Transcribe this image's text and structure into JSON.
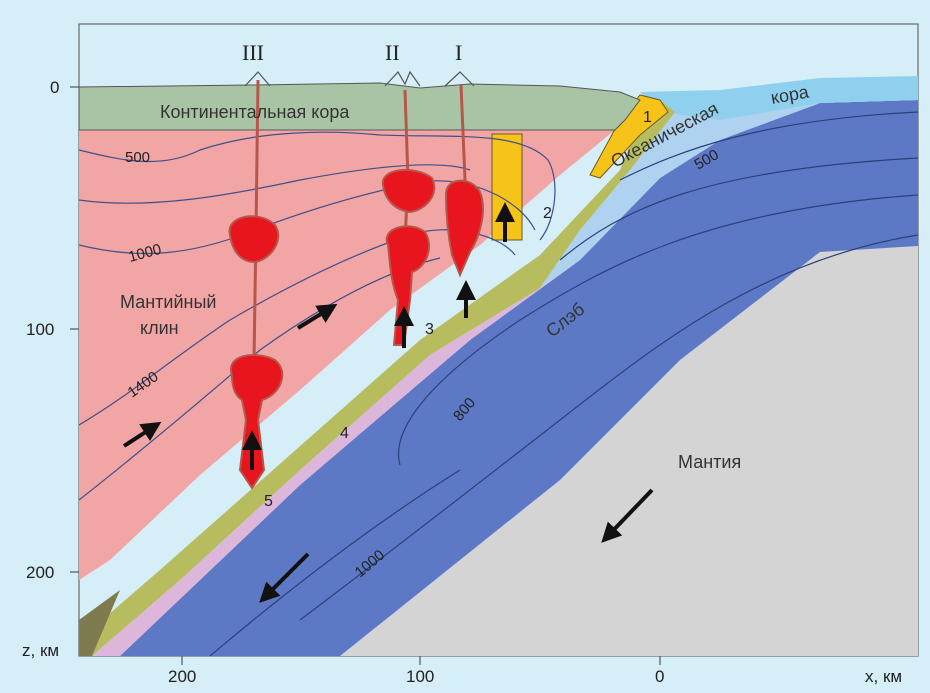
{
  "figure": {
    "roman_labels": [
      "III",
      "II",
      "I"
    ],
    "depth_axis": {
      "label": "z, км",
      "ticks": [
        "0",
        "100",
        "200"
      ]
    },
    "distance_axis": {
      "label": "x, км",
      "ticks": [
        "200",
        "100",
        "0"
      ]
    },
    "regions": {
      "continental_crust": "Континентальная кора",
      "oceanic_crust_1": "Океаническая",
      "oceanic_crust_2": "кора",
      "mantle_wedge_1": "Мантийный",
      "mantle_wedge_2": "клин",
      "slab": "Слэб",
      "mantle": "Мантия"
    },
    "isotherms": {
      "left_500": "500",
      "left_1000": "1000",
      "left_1400": "1400",
      "slab_500": "500",
      "slab_800": "800",
      "slab_1000": "1000"
    },
    "zone_numbers": [
      "1",
      "2",
      "3",
      "4",
      "5"
    ],
    "colors": {
      "background": "#d6eef8",
      "continental_crust": "#a9c4a4",
      "mantle_wedge": "#f2a5a5",
      "magma": "#e8141e",
      "conduit": "#b5574a",
      "yellow_zone": "#f6c419",
      "olive_layer": "#b7bd5e",
      "lilac_layer": "#ddb7db",
      "light_blue_crust": "#aed2ef",
      "oceanic_surface": "#8fd0ef",
      "slab": "#5d79c6",
      "mantle": "#d4d4d4"
    }
  }
}
